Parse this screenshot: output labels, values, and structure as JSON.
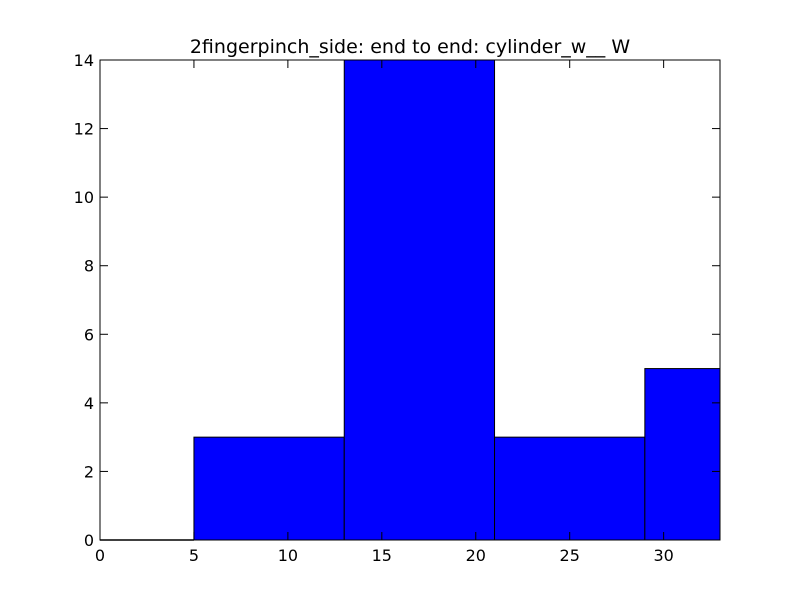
{
  "chart_data": {
    "type": "bar",
    "title": "2fingerpinch_side: end to end: cylinder_w__ W",
    "xlabel": "",
    "ylabel": "",
    "xlim": [
      0,
      33
    ],
    "ylim": [
      0,
      14
    ],
    "x_ticks": [
      "0",
      "5",
      "10",
      "15",
      "20",
      "25",
      "30"
    ],
    "y_ticks": [
      "0",
      "2",
      "4",
      "6",
      "8",
      "10",
      "12",
      "14"
    ],
    "bins": [
      {
        "start": 0,
        "end": 5,
        "value": 0
      },
      {
        "start": 5,
        "end": 13,
        "value": 3
      },
      {
        "start": 13,
        "end": 21,
        "value": 14
      },
      {
        "start": 21,
        "end": 29,
        "value": 3
      },
      {
        "start": 29,
        "end": 33,
        "value": 5
      }
    ],
    "bar_color": "#0000ff",
    "edge_color": "#000000",
    "grid": false
  }
}
